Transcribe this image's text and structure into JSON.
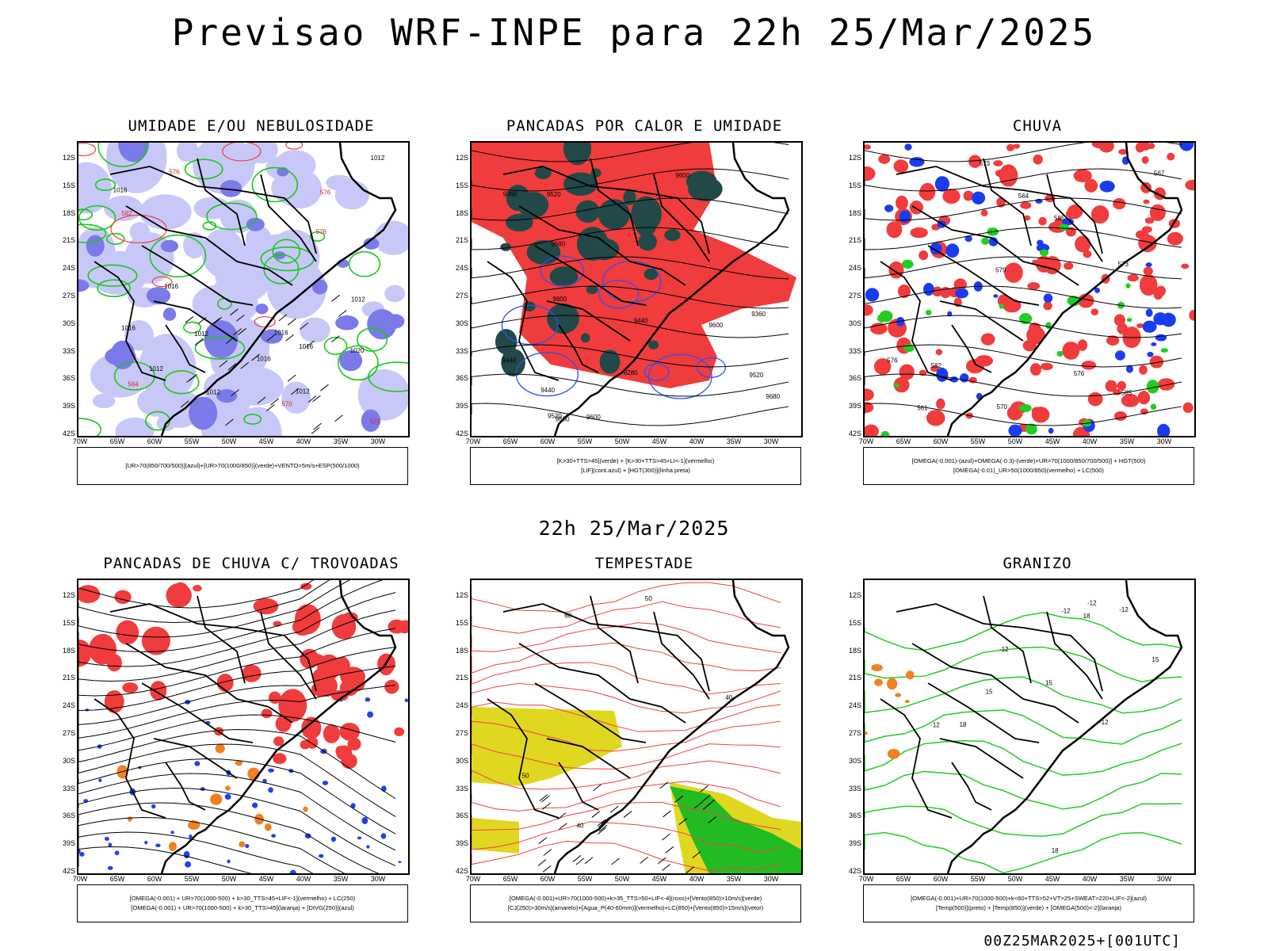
{
  "header": {
    "title": "Previsao WRF-INPE  para 22h 25/Mar/2025",
    "mid_time": "22h 25/Mar/2025",
    "run_label": "00Z25MAR2025+[001UTC]"
  },
  "axes": {
    "lat_ticks": [
      "12S",
      "15S",
      "18S",
      "21S",
      "24S",
      "27S",
      "30S",
      "33S",
      "36S",
      "39S",
      "42S"
    ],
    "lon_ticks": [
      "70W",
      "65W",
      "60W",
      "55W",
      "50W",
      "45W",
      "40W",
      "35W",
      "30W"
    ]
  },
  "panels": [
    {
      "id": "umidade",
      "title": "UMIDADE E/OU NEBULOSIDADE",
      "legend": [
        "[UR>70(850/700/500)](azul)+[UR>70(1000/850)](verde)+VENTO>5m/s+ESP(500/1000)"
      ],
      "colors": {
        "fill": "#c8c8f8",
        "fill2": "#7a7ae8",
        "line1": "#19c819",
        "line2": "#f04040",
        "line3": "#000000"
      },
      "contour_labels": [
        "1012",
        "1016",
        "1016",
        "1016",
        "1012",
        "1012",
        "1012",
        "1016",
        "1020",
        "1012",
        "1016",
        "1012",
        "1016",
        "576",
        "576",
        "576",
        "570",
        "582",
        "576",
        "564"
      ]
    },
    {
      "id": "pancadas-calor",
      "title": "PANCADAS POR CALOR E UMIDADE",
      "legend": [
        "[K>30+TTS>45](verde) + [K>30+TTS>45+LI<-1](vermelho)",
        "[LIF](cont.azul) + [HGT(300)](linha preta)"
      ],
      "colors": {
        "fill": "#f03c3c",
        "fill2": "#224848",
        "line1": "#3050f0",
        "line2": "#000000",
        "line3": "#000000"
      },
      "contour_labels": [
        "9680",
        "9680",
        "9680",
        "9600",
        "9600",
        "9600",
        "9520",
        "9520",
        "9520",
        "9440",
        "9440",
        "9440",
        "9360",
        "9360",
        "9280",
        "9600"
      ]
    },
    {
      "id": "chuva",
      "title": "CHUVA",
      "legend": [
        "[OMEGA(-0.001)-(azul)+OMEGA(-0.3)-(verde)+UR>70(1000/850/700/500)] + HGT(500)",
        "[OMEGA(-0.01)_UR>50(1000/850)(vermelho) + LC(500)"
      ],
      "colors": {
        "fill": "#f03c3c",
        "fill2": "#1a3cf0",
        "line1": "#22cc22",
        "line2": "#000000",
        "line3": "#000000"
      },
      "contour_labels": [
        "585",
        "585",
        "582",
        "579",
        "576",
        "576",
        "573",
        "570",
        "567",
        "564",
        "561",
        "573"
      ]
    },
    {
      "id": "trovoadas",
      "title": "PANCADAS DE CHUVA C/ TROVOADAS",
      "legend": [
        "[OMEGA(-0.001) + UR>70(1000-500) + k>30_TTS>45+LIF<-1](vermelho) + LC(250)",
        "[OMEGA(-0.001) + UR>70(1000-500) + k>30_TTS>45](laranja) + [DIVG(250)](azul)"
      ],
      "colors": {
        "fill": "#f03c3c",
        "fill2": "#f08020",
        "line1": "#2040f0",
        "line2": "#000000",
        "line3": "#000000"
      },
      "contour_labels": []
    },
    {
      "id": "tempestade",
      "title": "TEMPESTADE",
      "legend": [
        "[OMEGA(-0.001)+UR>70(1000-500)+k>35_TTS>50+LIF<-4](roxo)+[Vento(850)>10m/s](verde)",
        "[CJ(250)>30m/s](amarelo)+[Agua_P(40-60mm)](vermelho)+LC(850)+[Vento(850)>15m/s](vetor)"
      ],
      "colors": {
        "fill": "#e0d820",
        "fill2": "#22bb22",
        "line1": "#f04040",
        "line2": "#000000",
        "line3": "#000000"
      },
      "contour_labels": [
        "40",
        "50",
        "60",
        "50",
        "40"
      ]
    },
    {
      "id": "granizo",
      "title": "GRANIZO",
      "legend": [
        "[OMEGA(-0.001)+UR>70(1000-500)+k<60+TTS>52+VT>25+SWEAT>220+LIF<-2](azul)",
        "[Temp(500)](preto) + [Temp(850)](verde) + [OMEGA(500)<-2](laranja)"
      ],
      "colors": {
        "fill": "#f08020",
        "fill2": "#2040f0",
        "line1": "#22cc22",
        "line2": "#000000",
        "line3": "#000000"
      },
      "contour_labels": [
        "-12",
        "-12",
        "-12",
        "-12",
        "-12",
        "-12",
        "15",
        "18",
        "15",
        "18",
        "15",
        "18"
      ]
    }
  ]
}
